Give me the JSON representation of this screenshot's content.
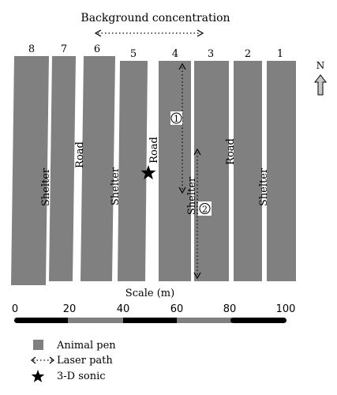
{
  "title": "Background concentration",
  "pens": [
    {
      "number": "8"
    },
    {
      "number": "7"
    },
    {
      "number": "6"
    },
    {
      "number": "5"
    },
    {
      "number": "4"
    },
    {
      "number": "3"
    },
    {
      "number": "2"
    },
    {
      "number": "1"
    }
  ],
  "labels": {
    "shelter_1": "Shelter",
    "road_1": "Road",
    "shelter_2": "Shelter",
    "road_2": "Road",
    "shelter_3": "Shelter",
    "road_3": "Road",
    "shelter_4": "Shelter"
  },
  "paths": {
    "path_1": "1",
    "path_2": "2"
  },
  "north": "N",
  "scale": {
    "label": "Scale (m)",
    "ticks": [
      "0",
      "20",
      "40",
      "60",
      "80",
      "100"
    ]
  },
  "legend": {
    "animal_pen": "Animal pen",
    "laser_path": "Laser path",
    "sonic": "3-D sonic"
  },
  "colors": {
    "pen": "#808080",
    "bar_dark": "#000000",
    "bar_light": "#808080"
  }
}
